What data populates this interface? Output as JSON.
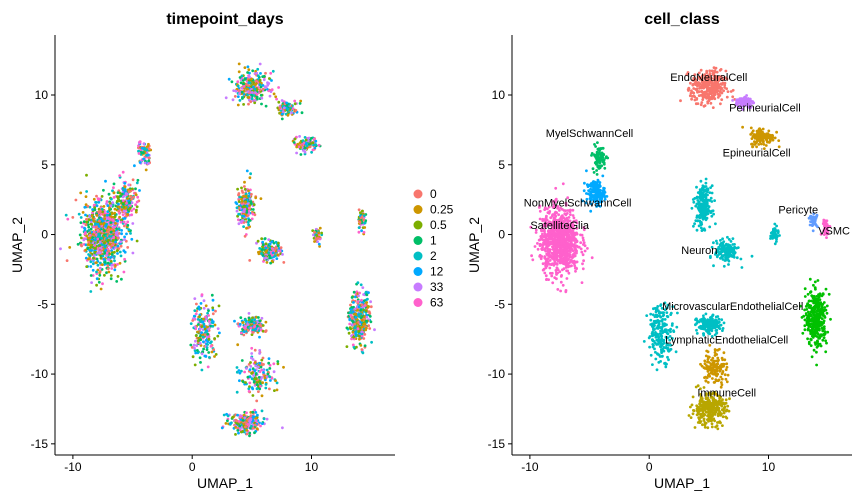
{
  "chart_data": [
    {
      "type": "scatter",
      "title": "timepoint_days",
      "xlabel": "UMAP_1",
      "ylabel": "UMAP_2",
      "xlim": [
        -11.5,
        17
      ],
      "ylim": [
        -15.8,
        14.3
      ],
      "xticks": [
        "-10",
        "0",
        "10"
      ],
      "yticks": [
        "10",
        "5",
        "0",
        "-5",
        "-10",
        "-15"
      ],
      "grid": false,
      "legend_position": "right",
      "legend": [
        {
          "label": "0",
          "color": "#F8766D"
        },
        {
          "label": "0.25",
          "color": "#CD9600"
        },
        {
          "label": "0.5",
          "color": "#7CAE00"
        },
        {
          "label": "1",
          "color": "#00BE67"
        },
        {
          "label": "2",
          "color": "#00BFC4"
        },
        {
          "label": "12",
          "color": "#00A9FF"
        },
        {
          "label": "33",
          "color": "#C77CFF"
        },
        {
          "label": "63",
          "color": "#FF61CC"
        }
      ],
      "clusters": [
        {
          "x": -7.5,
          "y": 0.0,
          "sx": 1.6,
          "sy": 2.2,
          "n": 900
        },
        {
          "x": -5.5,
          "y": 2.5,
          "sx": 0.9,
          "sy": 1.3,
          "n": 180
        },
        {
          "x": -4.0,
          "y": 5.8,
          "sx": 0.5,
          "sy": 0.8,
          "n": 80
        },
        {
          "x": 5.0,
          "y": 10.5,
          "sx": 1.3,
          "sy": 1.1,
          "n": 260
        },
        {
          "x": 8.0,
          "y": 9.0,
          "sx": 0.8,
          "sy": 0.6,
          "n": 100
        },
        {
          "x": 9.5,
          "y": 6.5,
          "sx": 0.9,
          "sy": 0.5,
          "n": 100
        },
        {
          "x": 4.5,
          "y": 2.0,
          "sx": 0.6,
          "sy": 1.3,
          "n": 220
        },
        {
          "x": 6.5,
          "y": -1.2,
          "sx": 0.9,
          "sy": 0.7,
          "n": 150
        },
        {
          "x": 10.5,
          "y": 0.0,
          "sx": 0.3,
          "sy": 0.5,
          "n": 50
        },
        {
          "x": 5.0,
          "y": -6.5,
          "sx": 0.9,
          "sy": 0.6,
          "n": 160
        },
        {
          "x": 1.0,
          "y": -7.0,
          "sx": 1.0,
          "sy": 1.8,
          "n": 200
        },
        {
          "x": 5.5,
          "y": -10.0,
          "sx": 1.3,
          "sy": 1.2,
          "n": 160
        },
        {
          "x": 4.5,
          "y": -13.5,
          "sx": 1.3,
          "sy": 0.7,
          "n": 220
        },
        {
          "x": 14.0,
          "y": -6.0,
          "sx": 0.8,
          "sy": 1.8,
          "n": 320
        },
        {
          "x": 14.2,
          "y": 1.0,
          "sx": 0.3,
          "sy": 0.8,
          "n": 50
        }
      ]
    },
    {
      "type": "scatter",
      "title": "cell_class",
      "xlabel": "UMAP_1",
      "ylabel": "UMAP_2",
      "xlim": [
        -11.5,
        17
      ],
      "ylim": [
        -15.8,
        14.3
      ],
      "xticks": [
        "-10",
        "0",
        "10"
      ],
      "yticks": [
        "10",
        "5",
        "0",
        "-5",
        "-10",
        "-15"
      ],
      "grid": false,
      "legend_position": "none",
      "series": [
        {
          "name": "EndoNeuralCell",
          "color": "#F8766D",
          "label_at": [
            5.0,
            11.0
          ],
          "clusters": [
            {
              "x": 5.0,
              "y": 10.5,
              "sx": 1.3,
              "sy": 1.1,
              "n": 320
            }
          ]
        },
        {
          "name": "PerineurialCell",
          "color": "#C77CFF",
          "label_at": [
            9.7,
            8.8
          ],
          "clusters": [
            {
              "x": 8.0,
              "y": 9.5,
              "sx": 0.7,
              "sy": 0.4,
              "n": 90
            }
          ]
        },
        {
          "name": "EpineurialCell",
          "color": "#CD9600",
          "label_at": [
            9.0,
            5.6
          ],
          "clusters": [
            {
              "x": 9.5,
              "y": 7.0,
              "sx": 0.9,
              "sy": 0.6,
              "n": 140
            }
          ]
        },
        {
          "name": "MyelSchwannCell",
          "color": "#00BE67",
          "label_at": [
            -5.0,
            7.0
          ],
          "clusters": [
            {
              "x": -4.2,
              "y": 5.5,
              "sx": 0.5,
              "sy": 0.8,
              "n": 90
            }
          ]
        },
        {
          "name": "NonMyelSchwannCell",
          "color": "#00A9FF",
          "label_at": [
            -6.0,
            2.0
          ],
          "clusters": [
            {
              "x": -4.5,
              "y": 3.0,
              "sx": 0.7,
              "sy": 0.8,
              "n": 160
            }
          ]
        },
        {
          "name": "SatelliteGlia",
          "color": "#FF61CC",
          "label_at": [
            -7.5,
            0.4
          ],
          "clusters": [
            {
              "x": -7.5,
              "y": -0.5,
              "sx": 1.5,
              "sy": 2.1,
              "n": 900
            }
          ]
        },
        {
          "name": "Neuron",
          "color": "#00BFC4",
          "label_at": [
            4.2,
            -1.4
          ],
          "clusters": [
            {
              "x": 4.5,
              "y": 2.0,
              "sx": 0.6,
              "sy": 1.3,
              "n": 220
            },
            {
              "x": 6.5,
              "y": -1.2,
              "sx": 0.9,
              "sy": 0.7,
              "n": 150
            },
            {
              "x": 10.5,
              "y": 0.0,
              "sx": 0.3,
              "sy": 0.5,
              "n": 50
            }
          ]
        },
        {
          "name": "MicrovascularEndothelialCell",
          "color": "#00BFC4",
          "label_at": [
            7.0,
            -5.4
          ],
          "clusters": [
            {
              "x": 5.0,
              "y": -6.5,
              "sx": 0.9,
              "sy": 0.6,
              "n": 160
            },
            {
              "x": 1.0,
              "y": -7.0,
              "sx": 1.0,
              "sy": 1.8,
              "n": 200
            }
          ]
        },
        {
          "name": "LymphaticEndothelialCell",
          "color": "#CD9600",
          "label_at": [
            6.5,
            -7.8
          ],
          "clusters": [
            {
              "x": 5.5,
              "y": -9.5,
              "sx": 0.9,
              "sy": 1.2,
              "n": 140
            }
          ]
        },
        {
          "name": "ImmuneCell",
          "color": "#B8A600",
          "label_at": [
            6.5,
            -11.6
          ],
          "clusters": [
            {
              "x": 5.0,
              "y": -12.5,
              "sx": 1.3,
              "sy": 1.0,
              "n": 300
            }
          ]
        },
        {
          "name": "Pericyte",
          "color": "#619CFF",
          "label_at": [
            12.5,
            1.5
          ],
          "clusters": [
            {
              "x": 13.8,
              "y": 1.0,
              "sx": 0.3,
              "sy": 0.4,
              "n": 40
            }
          ]
        },
        {
          "name": "VSMC",
          "color": "#FF61CC",
          "label_at": [
            15.5,
            0.0
          ],
          "clusters": [
            {
              "x": 14.8,
              "y": 0.5,
              "sx": 0.3,
              "sy": 0.5,
              "n": 40
            }
          ]
        },
        {
          "name": "",
          "color": "#00C000",
          "label_at": null,
          "clusters": [
            {
              "x": 14.0,
              "y": -6.0,
              "sx": 0.8,
              "sy": 1.8,
              "n": 360
            }
          ]
        }
      ]
    }
  ]
}
